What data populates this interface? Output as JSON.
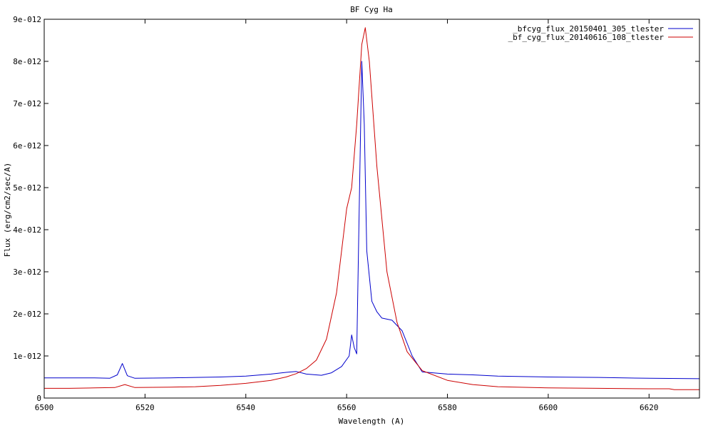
{
  "chart_data": {
    "type": "line",
    "title": "BF Cyg Ha",
    "xlabel": "Wavelength (A)",
    "ylabel": "Flux (erg/cm2/sec/A)",
    "xlim": [
      6500,
      6630
    ],
    "ylim": [
      0,
      9e-12
    ],
    "xticks": [
      6500,
      6520,
      6540,
      6560,
      6580,
      6600,
      6620
    ],
    "xtick_labels": [
      "6500",
      "6520",
      "6540",
      "6560",
      "6580",
      "6600",
      "6620"
    ],
    "yticks": [
      0,
      1e-12,
      2e-12,
      3e-12,
      4e-12,
      5e-12,
      6e-12,
      7e-12,
      8e-12,
      9e-12
    ],
    "ytick_labels": [
      "0",
      "1e-012",
      "2e-012",
      "3e-012",
      "4e-012",
      "5e-012",
      "6e-012",
      "7e-012",
      "8e-012",
      "9e-012"
    ],
    "grid": false,
    "legend_position": "top-right",
    "series": [
      {
        "name": "_bfcyg_flux_20150401_305_tlester",
        "color": "#0000cc",
        "points": [
          [
            6500,
            4.8e-13
          ],
          [
            6505,
            4.8e-13
          ],
          [
            6510,
            4.8e-13
          ],
          [
            6513,
            4.7e-13
          ],
          [
            6514.5,
            5.5e-13
          ],
          [
            6515.5,
            8.2e-13
          ],
          [
            6516.5,
            5.3e-13
          ],
          [
            6518,
            4.7e-13
          ],
          [
            6525,
            4.8e-13
          ],
          [
            6530,
            4.9e-13
          ],
          [
            6535,
            5e-13
          ],
          [
            6540,
            5.2e-13
          ],
          [
            6545,
            5.7e-13
          ],
          [
            6548,
            6.1e-13
          ],
          [
            6550,
            6.3e-13
          ],
          [
            6552,
            5.7e-13
          ],
          [
            6555,
            5.4e-13
          ],
          [
            6557,
            6e-13
          ],
          [
            6559,
            7.5e-13
          ],
          [
            6560.5,
            1e-12
          ],
          [
            6561,
            1.5e-12
          ],
          [
            6561.5,
            1.2e-12
          ],
          [
            6562,
            1.05e-12
          ],
          [
            6562.5,
            4.5e-12
          ],
          [
            6563,
            8e-12
          ],
          [
            6563.5,
            6.5e-12
          ],
          [
            6564,
            3.5e-12
          ],
          [
            6565,
            2.3e-12
          ],
          [
            6566,
            2.05e-12
          ],
          [
            6567,
            1.9e-12
          ],
          [
            6569,
            1.85e-12
          ],
          [
            6571,
            1.6e-12
          ],
          [
            6573,
            1e-12
          ],
          [
            6575,
            6.2e-13
          ],
          [
            6580,
            5.7e-13
          ],
          [
            6585,
            5.5e-13
          ],
          [
            6590,
            5.2e-13
          ],
          [
            6600,
            5e-13
          ],
          [
            6610,
            4.9e-13
          ],
          [
            6620,
            4.7e-13
          ],
          [
            6630,
            4.6e-13
          ]
        ]
      },
      {
        "name": "_bf_cyg_flux_20140616_108_tlester",
        "color": "#cc0000",
        "points": [
          [
            6500,
            2.3e-13
          ],
          [
            6505,
            2.3e-13
          ],
          [
            6510,
            2.4e-13
          ],
          [
            6514,
            2.5e-13
          ],
          [
            6516,
            3.2e-13
          ],
          [
            6518,
            2.5e-13
          ],
          [
            6525,
            2.6e-13
          ],
          [
            6530,
            2.7e-13
          ],
          [
            6535,
            3e-13
          ],
          [
            6540,
            3.5e-13
          ],
          [
            6545,
            4.2e-13
          ],
          [
            6548,
            5e-13
          ],
          [
            6550,
            5.8e-13
          ],
          [
            6552,
            7e-13
          ],
          [
            6554,
            9e-13
          ],
          [
            6556,
            1.4e-12
          ],
          [
            6558,
            2.5e-12
          ],
          [
            6560,
            4.5e-12
          ],
          [
            6561,
            5e-12
          ],
          [
            6562,
            6.5e-12
          ],
          [
            6563,
            8.4e-12
          ],
          [
            6563.7,
            8.8e-12
          ],
          [
            6564.5,
            8e-12
          ],
          [
            6566,
            5.5e-12
          ],
          [
            6568,
            3e-12
          ],
          [
            6570,
            1.8e-12
          ],
          [
            6572,
            1.1e-12
          ],
          [
            6575,
            6.5e-13
          ],
          [
            6580,
            4.2e-13
          ],
          [
            6585,
            3.2e-13
          ],
          [
            6590,
            2.7e-13
          ],
          [
            6600,
            2.4e-13
          ],
          [
            6610,
            2.3e-13
          ],
          [
            6620,
            2.2e-13
          ],
          [
            6624,
            2.2e-13
          ],
          [
            6625,
            2e-13
          ],
          [
            6630,
            2e-13
          ]
        ]
      }
    ]
  }
}
